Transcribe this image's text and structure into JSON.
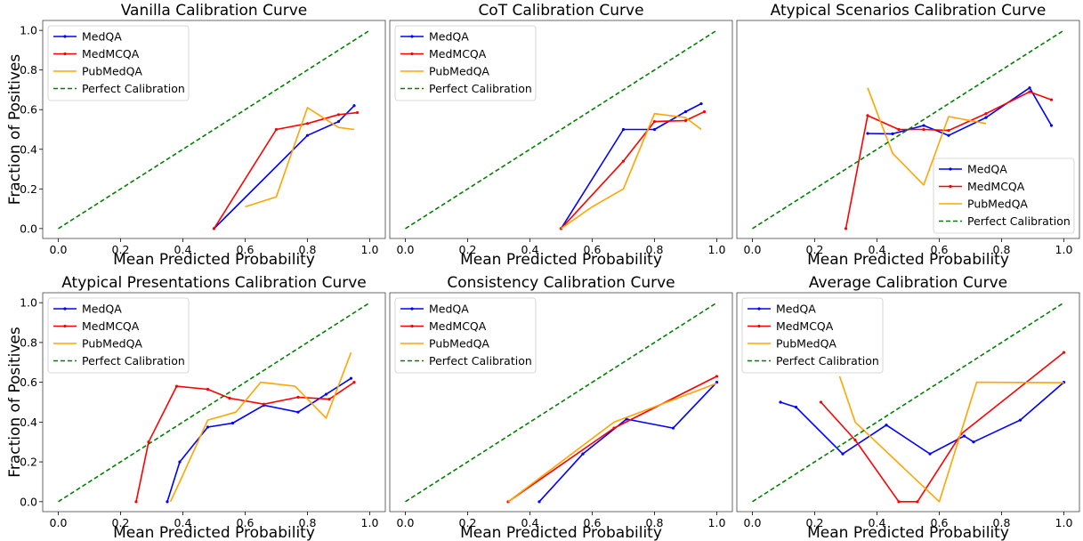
{
  "figure": {
    "xlabel": "Mean Predicted Probability",
    "ylabel": "Fraction of Positives"
  },
  "colors": {
    "MedQA": "#0000ff",
    "MedMCQA": "#ff0000",
    "PubMedQA": "#ffa500",
    "Perfect Calibration": "#008000"
  },
  "chart_data": [
    {
      "type": "line",
      "title": "Vanilla Calibration Curve",
      "xlabel": "Mean Predicted Probability",
      "ylabel": "Fraction of Positives",
      "xlim": [
        0.0,
        1.0
      ],
      "ylim": [
        0.0,
        1.0
      ],
      "xticks": [
        "0.0",
        "0.2",
        "0.4",
        "0.6",
        "0.8",
        "1.0"
      ],
      "yticks": [
        "0.0",
        "0.2",
        "0.4",
        "0.6",
        "0.8",
        "1.0"
      ],
      "legend_loc": "upper-left",
      "series": [
        {
          "name": "MedQA",
          "marker": true,
          "x": [
            0.5,
            0.8,
            0.9,
            0.95
          ],
          "y": [
            0.0,
            0.47,
            0.54,
            0.62
          ]
        },
        {
          "name": "MedMCQA",
          "marker": true,
          "x": [
            0.5,
            0.7,
            0.8,
            0.9,
            0.96
          ],
          "y": [
            0.0,
            0.5,
            0.53,
            0.575,
            0.585
          ]
        },
        {
          "name": "PubMedQA",
          "marker": false,
          "x": [
            0.6,
            0.7,
            0.8,
            0.9,
            0.95
          ],
          "y": [
            0.11,
            0.16,
            0.61,
            0.51,
            0.5
          ]
        },
        {
          "name": "Perfect Calibration",
          "dashed": true,
          "x": [
            0,
            1
          ],
          "y": [
            0,
            1
          ]
        }
      ]
    },
    {
      "type": "line",
      "title": "CoT Calibration Curve",
      "xlabel": "Mean Predicted Probability",
      "ylabel": "",
      "xlim": [
        0.0,
        1.0
      ],
      "ylim": [
        0.0,
        1.0
      ],
      "xticks": [
        "0.0",
        "0.2",
        "0.4",
        "0.6",
        "0.8",
        "1.0"
      ],
      "yticks": [],
      "legend_loc": "upper-left",
      "series": [
        {
          "name": "MedQA",
          "marker": true,
          "x": [
            0.5,
            0.7,
            0.8,
            0.9,
            0.95
          ],
          "y": [
            0.0,
            0.5,
            0.5,
            0.59,
            0.63
          ]
        },
        {
          "name": "MedMCQA",
          "marker": true,
          "x": [
            0.5,
            0.7,
            0.8,
            0.9,
            0.96
          ],
          "y": [
            0.0,
            0.34,
            0.54,
            0.545,
            0.59
          ]
        },
        {
          "name": "PubMedQA",
          "marker": false,
          "x": [
            0.5,
            0.6,
            0.7,
            0.8,
            0.9,
            0.95
          ],
          "y": [
            0.0,
            0.11,
            0.2,
            0.58,
            0.56,
            0.5
          ]
        },
        {
          "name": "Perfect Calibration",
          "dashed": true,
          "x": [
            0,
            1
          ],
          "y": [
            0,
            1
          ]
        }
      ]
    },
    {
      "type": "line",
      "title": "Atypical Scenarios Calibration Curve",
      "xlabel": "Mean Predicted Probability",
      "ylabel": "",
      "xlim": [
        0.0,
        1.0
      ],
      "ylim": [
        0.0,
        1.0
      ],
      "xticks": [
        "0.0",
        "0.2",
        "0.4",
        "0.6",
        "0.8",
        "1.0"
      ],
      "yticks": [],
      "legend_loc": "lower-right",
      "series": [
        {
          "name": "MedQA",
          "marker": true,
          "x": [
            0.37,
            0.45,
            0.55,
            0.63,
            0.75,
            0.89,
            0.96
          ],
          "y": [
            0.48,
            0.478,
            0.52,
            0.47,
            0.56,
            0.71,
            0.52
          ]
        },
        {
          "name": "MedMCQA",
          "marker": true,
          "x": [
            0.3,
            0.37,
            0.47,
            0.55,
            0.63,
            0.75,
            0.89,
            0.96
          ],
          "y": [
            0.0,
            0.57,
            0.5,
            0.5,
            0.495,
            0.58,
            0.69,
            0.65
          ]
        },
        {
          "name": "PubMedQA",
          "marker": false,
          "x": [
            0.37,
            0.45,
            0.55,
            0.63,
            0.75
          ],
          "y": [
            0.71,
            0.38,
            0.22,
            0.565,
            0.53
          ]
        },
        {
          "name": "Perfect Calibration",
          "dashed": true,
          "x": [
            0,
            1
          ],
          "y": [
            0,
            1
          ]
        }
      ]
    },
    {
      "type": "line",
      "title": "Atypical Presentations Calibration Curve",
      "xlabel": "Mean Predicted Probability",
      "ylabel": "Fraction of Positives",
      "xlim": [
        0.0,
        1.0
      ],
      "ylim": [
        0.0,
        1.0
      ],
      "xticks": [
        "0.0",
        "0.2",
        "0.4",
        "0.6",
        "0.8",
        "1.0"
      ],
      "yticks": [
        "0.0",
        "0.2",
        "0.4",
        "0.6",
        "0.8",
        "1.0"
      ],
      "legend_loc": "upper-left",
      "series": [
        {
          "name": "MedQA",
          "marker": true,
          "x": [
            0.35,
            0.39,
            0.48,
            0.56,
            0.66,
            0.77,
            0.86,
            0.94
          ],
          "y": [
            0.0,
            0.2,
            0.375,
            0.395,
            0.485,
            0.45,
            0.54,
            0.62
          ]
        },
        {
          "name": "MedMCQA",
          "marker": true,
          "x": [
            0.25,
            0.29,
            0.38,
            0.48,
            0.55,
            0.66,
            0.77,
            0.87,
            0.95
          ],
          "y": [
            0.0,
            0.3,
            0.58,
            0.565,
            0.52,
            0.49,
            0.525,
            0.515,
            0.6
          ]
        },
        {
          "name": "PubMedQA",
          "marker": false,
          "x": [
            0.36,
            0.39,
            0.48,
            0.57,
            0.65,
            0.76,
            0.86,
            0.94
          ],
          "y": [
            0.0,
            0.1,
            0.41,
            0.45,
            0.6,
            0.58,
            0.42,
            0.75
          ]
        },
        {
          "name": "Perfect Calibration",
          "dashed": true,
          "x": [
            0,
            1
          ],
          "y": [
            0,
            1
          ]
        }
      ]
    },
    {
      "type": "line",
      "title": "Consistency Calibration Curve",
      "xlabel": "Mean Predicted Probability",
      "ylabel": "",
      "xlim": [
        0.0,
        1.0
      ],
      "ylim": [
        0.0,
        1.0
      ],
      "xticks": [
        "0.0",
        "0.2",
        "0.4",
        "0.6",
        "0.8",
        "1.0"
      ],
      "yticks": [],
      "legend_loc": "upper-left",
      "series": [
        {
          "name": "MedQA",
          "marker": true,
          "x": [
            0.43,
            0.57,
            0.71,
            0.86,
            1.0
          ],
          "y": [
            0.0,
            0.24,
            0.415,
            0.37,
            0.6
          ]
        },
        {
          "name": "MedMCQA",
          "marker": true,
          "x": [
            0.33,
            0.67,
            1.0
          ],
          "y": [
            0.0,
            0.37,
            0.63
          ]
        },
        {
          "name": "PubMedQA",
          "marker": false,
          "x": [
            0.33,
            0.67,
            1.0
          ],
          "y": [
            0.0,
            0.4,
            0.595
          ]
        },
        {
          "name": "Perfect Calibration",
          "dashed": true,
          "x": [
            0,
            1
          ],
          "y": [
            0,
            1
          ]
        }
      ]
    },
    {
      "type": "line",
      "title": "Average Calibration Curve",
      "xlabel": "Mean Predicted Probability",
      "ylabel": "",
      "xlim": [
        0.0,
        1.0
      ],
      "ylim": [
        0.0,
        1.0
      ],
      "xticks": [
        "0.0",
        "0.2",
        "0.4",
        "0.6",
        "0.8",
        "1.0"
      ],
      "yticks": [],
      "legend_loc": "upper-left",
      "series": [
        {
          "name": "MedQA",
          "marker": true,
          "x": [
            0.09,
            0.14,
            0.29,
            0.43,
            0.57,
            0.68,
            0.71,
            0.86,
            1.0
          ],
          "y": [
            0.5,
            0.475,
            0.24,
            0.385,
            0.24,
            0.33,
            0.3,
            0.41,
            0.6
          ]
        },
        {
          "name": "MedMCQA",
          "marker": true,
          "x": [
            0.22,
            0.33,
            0.47,
            0.53,
            0.67,
            1.0
          ],
          "y": [
            0.5,
            0.31,
            0.0,
            0.0,
            0.34,
            0.75
          ]
        },
        {
          "name": "PubMedQA",
          "marker": false,
          "x": [
            0.28,
            0.33,
            0.6,
            0.72,
            1.0
          ],
          "y": [
            0.63,
            0.4,
            0.0,
            0.6,
            0.598
          ]
        },
        {
          "name": "Perfect Calibration",
          "dashed": true,
          "x": [
            0,
            1
          ],
          "y": [
            0,
            1
          ]
        }
      ]
    }
  ]
}
